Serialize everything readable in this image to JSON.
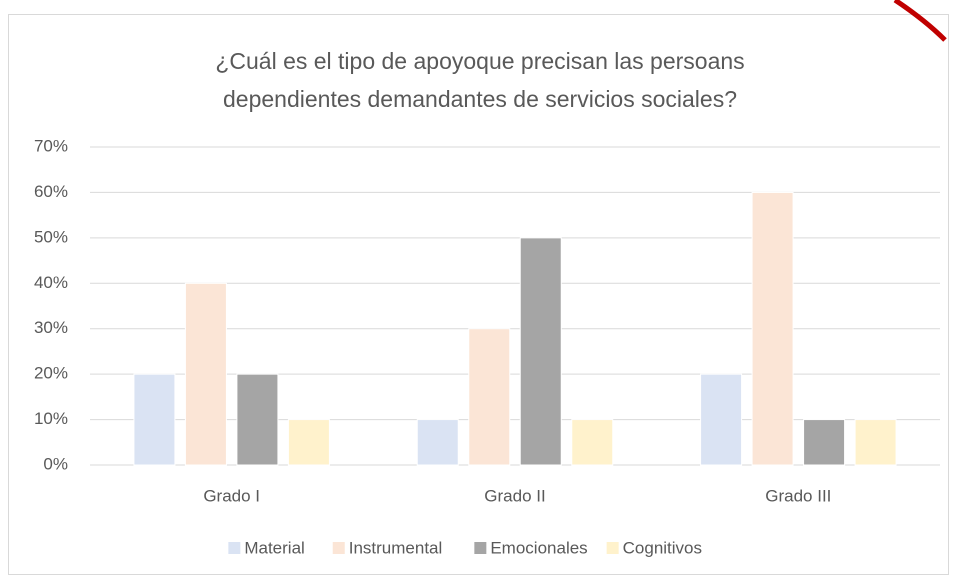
{
  "chart_data": {
    "type": "bar",
    "title": "¿Cuál es el tipo de apoyoque precisan las persoans dependientes demandantes de servicios sociales?",
    "categories": [
      "Grado I",
      "Grado II",
      "Grado III"
    ],
    "series": [
      {
        "name": "Material",
        "color": "#dae3f3",
        "values": [
          20,
          10,
          20
        ]
      },
      {
        "name": "Instrumental",
        "color": "#fbe5d6",
        "values": [
          40,
          30,
          60
        ]
      },
      {
        "name": "Emocionales",
        "color": "#a5a5a5",
        "values": [
          20,
          50,
          10
        ]
      },
      {
        "name": "Cognitivos",
        "color": "#fff2cc",
        "values": [
          10,
          10,
          10
        ]
      }
    ],
    "ylim": [
      0,
      70
    ],
    "yticks": [
      {
        "value": 0,
        "label": "0%"
      },
      {
        "value": 10,
        "label": "10%"
      },
      {
        "value": 20,
        "label": "20%"
      },
      {
        "value": 30,
        "label": "30%"
      },
      {
        "value": 40,
        "label": "40%"
      },
      {
        "value": 50,
        "label": "50%"
      },
      {
        "value": 60,
        "label": "60%"
      },
      {
        "value": 70,
        "label": "70%"
      }
    ],
    "grid": true
  }
}
